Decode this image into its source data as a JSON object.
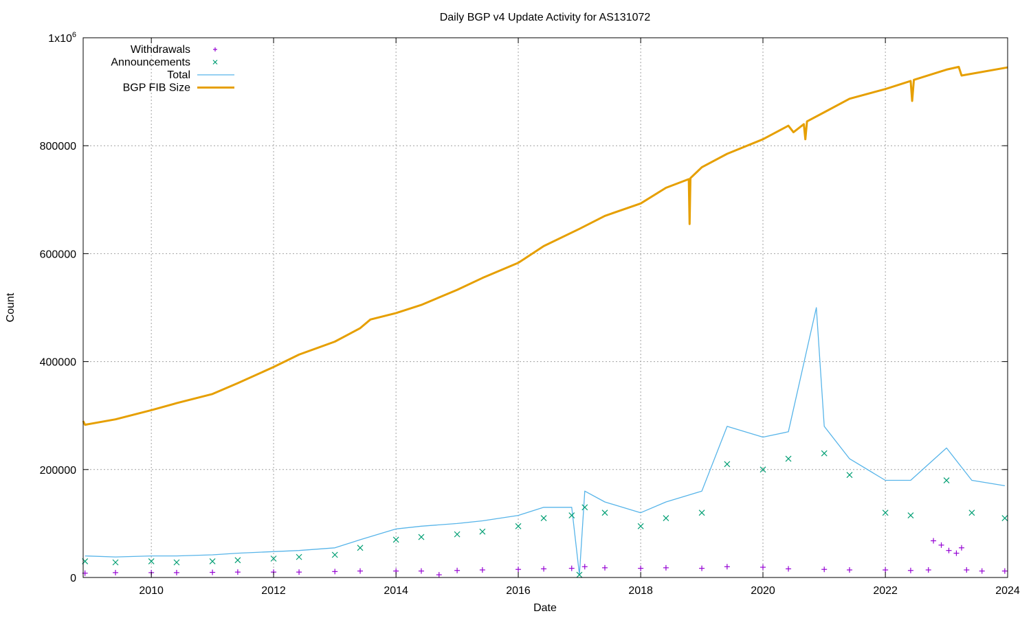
{
  "chart_data": {
    "type": "line",
    "title": "Daily BGP v4 Update Activity for AS131072",
    "xlabel": "Date",
    "ylabel": "Count",
    "xlim": [
      "2008-11-20",
      "2024-01-01"
    ],
    "ylim": [
      0,
      1000000
    ],
    "x_ticks": [
      "2010",
      "2012",
      "2014",
      "2016",
      "2018",
      "2020",
      "2022",
      "2024"
    ],
    "y_ticks": [
      {
        "value": 0,
        "label": "0"
      },
      {
        "value": 200000,
        "label": "200000"
      },
      {
        "value": 400000,
        "label": "400000"
      },
      {
        "value": 600000,
        "label": "600000"
      },
      {
        "value": 800000,
        "label": "800000"
      },
      {
        "value": 1000000,
        "label": "1x10",
        "sup": "6"
      }
    ],
    "grid": true,
    "legend_position": "top-left",
    "series": [
      {
        "name": "Withdrawals",
        "style": "points-plus",
        "color": "#9400d3",
        "points": [
          [
            "2008-12-01",
            8000
          ],
          [
            "2009-06-01",
            9000
          ],
          [
            "2010-01-01",
            9000
          ],
          [
            "2010-06-01",
            9000
          ],
          [
            "2011-01-01",
            9500
          ],
          [
            "2011-06-01",
            10000
          ],
          [
            "2012-01-01",
            10000
          ],
          [
            "2012-06-01",
            10000
          ],
          [
            "2013-01-01",
            11000
          ],
          [
            "2013-06-01",
            12000
          ],
          [
            "2014-01-01",
            12000
          ],
          [
            "2014-06-01",
            12000
          ],
          [
            "2014-09-15",
            5000
          ],
          [
            "2015-01-01",
            13000
          ],
          [
            "2015-06-01",
            14000
          ],
          [
            "2016-01-01",
            15000
          ],
          [
            "2016-06-01",
            16000
          ],
          [
            "2016-11-15",
            17000
          ],
          [
            "2017-02-01",
            20000
          ],
          [
            "2017-06-01",
            18000
          ],
          [
            "2018-01-01",
            17000
          ],
          [
            "2018-06-01",
            18000
          ],
          [
            "2019-01-01",
            17000
          ],
          [
            "2019-06-01",
            20000
          ],
          [
            "2020-01-01",
            19000
          ],
          [
            "2020-06-01",
            16000
          ],
          [
            "2021-01-01",
            15000
          ],
          [
            "2021-06-01",
            14000
          ],
          [
            "2022-01-01",
            14000
          ],
          [
            "2022-06-01",
            13000
          ],
          [
            "2022-09-15",
            14000
          ],
          [
            "2022-10-15",
            68000
          ],
          [
            "2022-12-01",
            60000
          ],
          [
            "2023-01-15",
            50000
          ],
          [
            "2023-03-01",
            45000
          ],
          [
            "2023-04-01",
            55000
          ],
          [
            "2023-05-01",
            14000
          ],
          [
            "2023-08-01",
            12000
          ],
          [
            "2023-12-15",
            12000
          ]
        ]
      },
      {
        "name": "Announcements",
        "style": "points-x",
        "color": "#009e73",
        "points": [
          [
            "2008-12-01",
            30000
          ],
          [
            "2009-06-01",
            28000
          ],
          [
            "2010-01-01",
            30000
          ],
          [
            "2010-06-01",
            28000
          ],
          [
            "2011-01-01",
            30000
          ],
          [
            "2011-06-01",
            32000
          ],
          [
            "2012-01-01",
            35000
          ],
          [
            "2012-06-01",
            38000
          ],
          [
            "2013-01-01",
            42000
          ],
          [
            "2013-06-01",
            55000
          ],
          [
            "2014-01-01",
            70000
          ],
          [
            "2014-06-01",
            75000
          ],
          [
            "2015-01-01",
            80000
          ],
          [
            "2015-06-01",
            85000
          ],
          [
            "2016-01-01",
            95000
          ],
          [
            "2016-06-01",
            110000
          ],
          [
            "2016-11-15",
            115000
          ],
          [
            "2016-12-31",
            5000
          ],
          [
            "2017-02-01",
            130000
          ],
          [
            "2017-06-01",
            120000
          ],
          [
            "2018-01-01",
            95000
          ],
          [
            "2018-06-01",
            110000
          ],
          [
            "2019-01-01",
            120000
          ],
          [
            "2019-06-01",
            210000
          ],
          [
            "2020-01-01",
            200000
          ],
          [
            "2020-06-01",
            220000
          ],
          [
            "2021-01-01",
            230000
          ],
          [
            "2021-06-01",
            190000
          ],
          [
            "2022-01-01",
            120000
          ],
          [
            "2022-06-01",
            115000
          ],
          [
            "2023-01-01",
            180000
          ],
          [
            "2023-06-01",
            120000
          ],
          [
            "2023-12-15",
            110000
          ]
        ]
      },
      {
        "name": "Total",
        "style": "line",
        "color": "#56b4e9",
        "points": [
          [
            "2008-12-01",
            40000
          ],
          [
            "2009-06-01",
            38000
          ],
          [
            "2010-01-01",
            40000
          ],
          [
            "2010-06-01",
            40000
          ],
          [
            "2011-01-01",
            42000
          ],
          [
            "2011-06-01",
            45000
          ],
          [
            "2012-01-01",
            48000
          ],
          [
            "2012-06-01",
            50000
          ],
          [
            "2013-01-01",
            55000
          ],
          [
            "2013-06-01",
            70000
          ],
          [
            "2014-01-01",
            90000
          ],
          [
            "2014-06-01",
            95000
          ],
          [
            "2015-01-01",
            100000
          ],
          [
            "2015-06-01",
            105000
          ],
          [
            "2016-01-01",
            115000
          ],
          [
            "2016-06-01",
            130000
          ],
          [
            "2016-11-15",
            130000
          ],
          [
            "2016-12-31",
            5000
          ],
          [
            "2017-02-01",
            160000
          ],
          [
            "2017-06-01",
            140000
          ],
          [
            "2018-01-01",
            120000
          ],
          [
            "2018-06-01",
            140000
          ],
          [
            "2019-01-01",
            160000
          ],
          [
            "2019-06-01",
            280000
          ],
          [
            "2020-01-01",
            260000
          ],
          [
            "2020-06-01",
            270000
          ],
          [
            "2020-11-15",
            500000
          ],
          [
            "2021-01-01",
            280000
          ],
          [
            "2021-06-01",
            220000
          ],
          [
            "2022-01-01",
            180000
          ],
          [
            "2022-06-01",
            180000
          ],
          [
            "2023-01-01",
            240000
          ],
          [
            "2023-06-01",
            180000
          ],
          [
            "2023-12-15",
            170000
          ]
        ]
      },
      {
        "name": "BGP FIB Size",
        "style": "thick-line",
        "color": "#e69f00",
        "points": [
          [
            "2008-11-20",
            290000
          ],
          [
            "2008-12-01",
            283000
          ],
          [
            "2009-06-01",
            293000
          ],
          [
            "2010-01-01",
            310000
          ],
          [
            "2010-06-01",
            323000
          ],
          [
            "2011-01-01",
            340000
          ],
          [
            "2011-06-01",
            360000
          ],
          [
            "2012-01-01",
            390000
          ],
          [
            "2012-06-01",
            413000
          ],
          [
            "2013-01-01",
            437000
          ],
          [
            "2013-06-01",
            462000
          ],
          [
            "2013-08-01",
            478000
          ],
          [
            "2014-01-01",
            490000
          ],
          [
            "2014-06-01",
            505000
          ],
          [
            "2015-01-01",
            533000
          ],
          [
            "2015-06-01",
            555000
          ],
          [
            "2016-01-01",
            583000
          ],
          [
            "2016-06-01",
            614000
          ],
          [
            "2017-01-01",
            646000
          ],
          [
            "2017-06-01",
            670000
          ],
          [
            "2018-01-01",
            693000
          ],
          [
            "2018-06-01",
            722000
          ],
          [
            "2018-10-15",
            738000
          ],
          [
            "2018-10-20",
            655000
          ],
          [
            "2018-10-25",
            740000
          ],
          [
            "2019-01-01",
            760000
          ],
          [
            "2019-06-01",
            785000
          ],
          [
            "2020-01-01",
            812000
          ],
          [
            "2020-06-01",
            837000
          ],
          [
            "2020-07-01",
            825000
          ],
          [
            "2020-09-01",
            840000
          ],
          [
            "2020-09-10",
            812000
          ],
          [
            "2020-09-20",
            845000
          ],
          [
            "2021-01-01",
            862000
          ],
          [
            "2021-06-01",
            887000
          ],
          [
            "2022-01-01",
            905000
          ],
          [
            "2022-06-01",
            920000
          ],
          [
            "2022-06-10",
            883000
          ],
          [
            "2022-06-20",
            922000
          ],
          [
            "2023-01-01",
            941000
          ],
          [
            "2023-03-15",
            946000
          ],
          [
            "2023-04-01",
            930000
          ],
          [
            "2023-12-31",
            945000
          ]
        ]
      }
    ]
  }
}
